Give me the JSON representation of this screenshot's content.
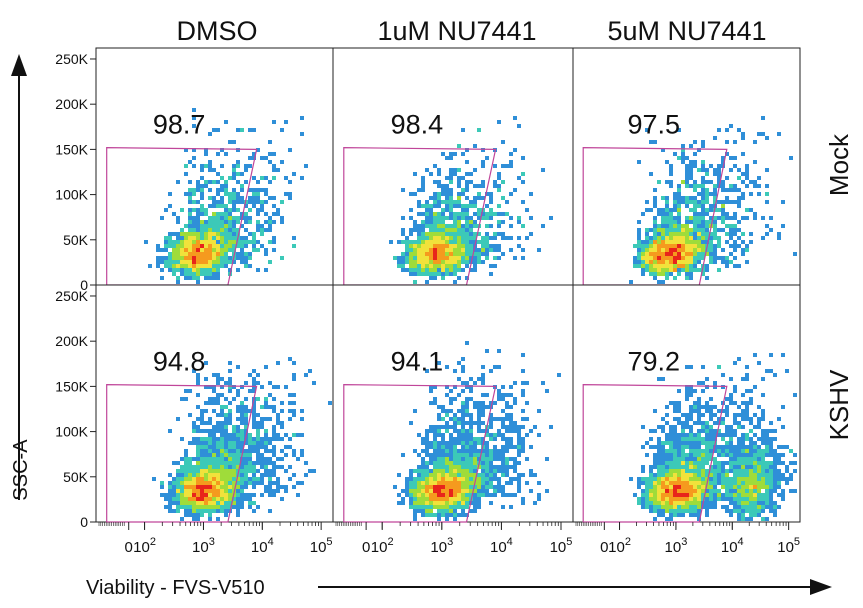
{
  "chart_data": {
    "type": "scatter",
    "subtype": "flow-cytometry density dot plot grid",
    "columns": [
      "DMSO",
      "1uM NU7441",
      "5uM NU7441"
    ],
    "rows": [
      "Mock",
      "KSHV"
    ],
    "xlabel": "Viability - FVS-V510",
    "ylabel": "SSC-A",
    "x_scale": "biexponential",
    "x_tick_labels": [
      "0",
      "10^2",
      "10^3",
      "10^4",
      "10^5"
    ],
    "y_tick_labels": [
      "0",
      "50K",
      "100K",
      "150K",
      "200K",
      "250K"
    ],
    "ylim": [
      0,
      262144
    ],
    "gate_percent": [
      [
        98.7,
        98.4,
        97.5
      ],
      [
        94.8,
        94.1,
        79.2
      ]
    ],
    "gate_polygon_data_units": [
      [
        1,
        152000
      ],
      [
        8000,
        150000
      ],
      [
        2600,
        0
      ],
      [
        1,
        0
      ]
    ],
    "population_centers": [
      [
        {
          "x": 700,
          "y": 30000
        },
        {
          "x": 700,
          "y": 30000
        },
        {
          "x": 700,
          "y": 30000
        }
      ],
      [
        {
          "x": 900,
          "y": 30000
        },
        {
          "x": 900,
          "y": 30000
        },
        {
          "x": 900,
          "y": 30000,
          "second_population": {
            "x": 20000,
            "y": 35000
          }
        }
      ]
    ],
    "gate_color": "#c0469a",
    "density_colors": [
      "#2140a5",
      "#2f8fd8",
      "#3cc9b8",
      "#9fdc3a",
      "#f1e23b",
      "#f59a1e",
      "#e8241b"
    ]
  }
}
